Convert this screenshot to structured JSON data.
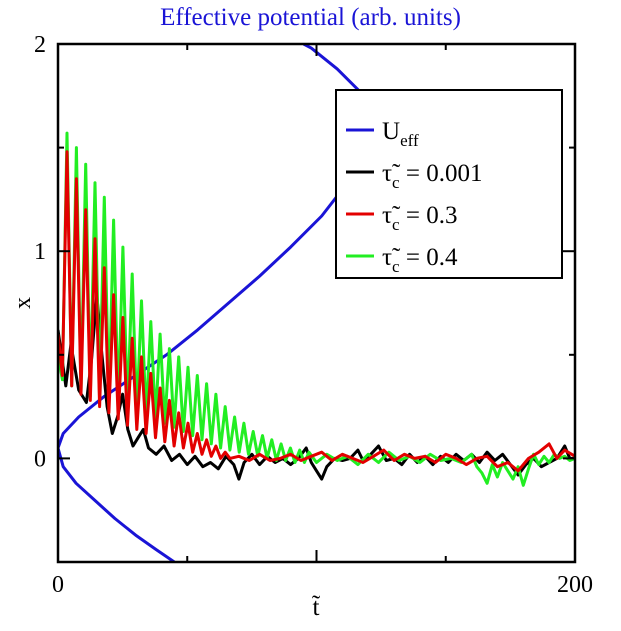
{
  "chart_data": {
    "type": "line",
    "title": "Effective potential (arb. units)",
    "xlabel": "t̃",
    "ylabel": "x",
    "xlim": [
      0,
      200
    ],
    "ylim": [
      -0.5,
      2
    ],
    "x_ticks": [
      {
        "value": 0,
        "label": "0"
      },
      {
        "value": 200,
        "label": "200"
      }
    ],
    "y_ticks": [
      {
        "value": 0,
        "label": "0"
      },
      {
        "value": 1,
        "label": "1"
      },
      {
        "value": 2,
        "label": "2"
      }
    ],
    "grid": false,
    "legend_position": "top-right",
    "colors": {
      "title": "#1a14d6",
      "ueff": "#1a14d6",
      "tau_0001": "#000000",
      "tau_03": "#e30000",
      "tau_04": "#22ee22"
    },
    "series": [
      {
        "name": "U_eff",
        "legend_main": "U",
        "legend_sub": "eff",
        "legend_suffix": "",
        "color": "#1a14d6",
        "points": [
          [
            45,
            -0.5
          ],
          [
            38,
            -0.44
          ],
          [
            30,
            -0.37
          ],
          [
            22,
            -0.29
          ],
          [
            14,
            -0.2
          ],
          [
            7,
            -0.12
          ],
          [
            2,
            -0.04
          ],
          [
            0,
            0.05
          ],
          [
            2,
            0.12
          ],
          [
            8,
            0.2
          ],
          [
            18,
            0.3
          ],
          [
            30,
            0.4
          ],
          [
            42,
            0.5
          ],
          [
            54,
            0.62
          ],
          [
            66,
            0.75
          ],
          [
            78,
            0.88
          ],
          [
            90,
            1.02
          ],
          [
            102,
            1.17
          ],
          [
            112,
            1.33
          ],
          [
            119,
            1.48
          ],
          [
            122,
            1.58
          ],
          [
            121,
            1.68
          ],
          [
            116,
            1.78
          ],
          [
            108,
            1.88
          ],
          [
            98,
            1.98
          ],
          [
            95,
            2.0
          ]
        ]
      },
      {
        "name": "τ̃c = 0.001",
        "legend_main": "τ̃",
        "legend_sub": "c",
        "legend_suffix": " = 0.001",
        "color": "#000000",
        "points": [
          [
            0,
            0.62
          ],
          [
            3,
            0.35
          ],
          [
            5,
            0.55
          ],
          [
            8,
            0.33
          ],
          [
            11,
            0.27
          ],
          [
            13,
            0.48
          ],
          [
            15,
            0.79
          ],
          [
            17,
            0.5
          ],
          [
            19,
            0.25
          ],
          [
            21,
            0.12
          ],
          [
            23,
            0.2
          ],
          [
            25,
            0.31
          ],
          [
            27,
            0.14
          ],
          [
            29,
            0.06
          ],
          [
            31,
            0.1
          ],
          [
            33,
            0.14
          ],
          [
            35,
            0.05
          ],
          [
            38,
            0.02
          ],
          [
            41,
            0.06
          ],
          [
            44,
            -0.01
          ],
          [
            47,
            0.02
          ],
          [
            50,
            -0.03
          ],
          [
            53,
            0.01
          ],
          [
            56,
            -0.04
          ],
          [
            59,
            -0.02
          ],
          [
            62,
            -0.05
          ],
          [
            65,
            0.01
          ],
          [
            68,
            -0.03
          ],
          [
            70,
            -0.1
          ],
          [
            72,
            -0.02
          ],
          [
            75,
            0.02
          ],
          [
            78,
            -0.03
          ],
          [
            81,
            0.01
          ],
          [
            84,
            -0.02
          ],
          [
            87,
            0.0
          ],
          [
            90,
            -0.03
          ],
          [
            93,
            0.0
          ],
          [
            96,
            0.05
          ],
          [
            98,
            -0.02
          ],
          [
            100,
            -0.06
          ],
          [
            102,
            -0.1
          ],
          [
            104,
            -0.04
          ],
          [
            107,
            0.0
          ],
          [
            110,
            -0.01
          ],
          [
            113,
            0.0
          ],
          [
            116,
            0.04
          ],
          [
            118,
            -0.01
          ],
          [
            121,
            0.02
          ],
          [
            124,
            0.06
          ],
          [
            127,
            -0.01
          ],
          [
            130,
            0.0
          ],
          [
            133,
            -0.03
          ],
          [
            136,
            0.02
          ],
          [
            139,
            -0.02
          ],
          [
            142,
            0.01
          ],
          [
            145,
            -0.03
          ],
          [
            148,
            0.01
          ],
          [
            151,
            -0.02
          ],
          [
            154,
            0.02
          ],
          [
            157,
            -0.01
          ],
          [
            160,
            0.02
          ],
          [
            163,
            -0.02
          ],
          [
            166,
            0.03
          ],
          [
            169,
            -0.01
          ],
          [
            172,
            0.02
          ],
          [
            175,
            -0.03
          ],
          [
            178,
            -0.08
          ],
          [
            181,
            -0.03
          ],
          [
            184,
            0.0
          ],
          [
            187,
            -0.04
          ],
          [
            190,
            -0.02
          ],
          [
            193,
            0.0
          ],
          [
            196,
            0.06
          ],
          [
            198,
            0.0
          ],
          [
            200,
            0.0
          ]
        ]
      },
      {
        "name": "τ̃c = 0.3",
        "legend_main": "τ̃",
        "legend_sub": "c",
        "legend_suffix": " = 0.3",
        "color": "#e30000",
        "points": [
          [
            0,
            0.6
          ],
          [
            1.7,
            0.4
          ],
          [
            3.5,
            1.48
          ],
          [
            5.3,
            0.35
          ],
          [
            7.1,
            1.35
          ],
          [
            8.9,
            0.31
          ],
          [
            10.7,
            1.2
          ],
          [
            12.5,
            0.28
          ],
          [
            14.3,
            1.06
          ],
          [
            16.1,
            0.25
          ],
          [
            17.9,
            0.92
          ],
          [
            19.7,
            0.22
          ],
          [
            21.5,
            0.79
          ],
          [
            23.3,
            0.19
          ],
          [
            25.1,
            0.68
          ],
          [
            26.9,
            0.16
          ],
          [
            28.7,
            0.58
          ],
          [
            30.5,
            0.14
          ],
          [
            32.3,
            0.49
          ],
          [
            34.1,
            0.12
          ],
          [
            35.9,
            0.41
          ],
          [
            37.7,
            0.1
          ],
          [
            39.5,
            0.34
          ],
          [
            41.3,
            0.08
          ],
          [
            43.1,
            0.28
          ],
          [
            44.9,
            0.06
          ],
          [
            46.7,
            0.22
          ],
          [
            48.5,
            0.05
          ],
          [
            50.3,
            0.17
          ],
          [
            52.1,
            0.03
          ],
          [
            53.9,
            0.12
          ],
          [
            55.7,
            0.02
          ],
          [
            57.5,
            0.09
          ],
          [
            59.3,
            0.01
          ],
          [
            61.1,
            0.06
          ],
          [
            62.9,
            0.0
          ],
          [
            64.7,
            0.03
          ],
          [
            66.5,
            0.0
          ],
          [
            70,
            0.01
          ],
          [
            74,
            -0.01
          ],
          [
            78,
            0.02
          ],
          [
            82,
            -0.01
          ],
          [
            86,
            0.0
          ],
          [
            90,
            0.02
          ],
          [
            94,
            -0.01
          ],
          [
            98,
            0.01
          ],
          [
            102,
            0.03
          ],
          [
            106,
            -0.01
          ],
          [
            110,
            0.02
          ],
          [
            114,
            0.0
          ],
          [
            118,
            -0.02
          ],
          [
            122,
            0.01
          ],
          [
            126,
            0.04
          ],
          [
            130,
            -0.01
          ],
          [
            134,
            0.02
          ],
          [
            138,
            0.0
          ],
          [
            142,
            0.01
          ],
          [
            146,
            -0.02
          ],
          [
            150,
            0.02
          ],
          [
            154,
            0.0
          ],
          [
            158,
            -0.03
          ],
          [
            162,
            0.0
          ],
          [
            166,
            0.01
          ],
          [
            170,
            -0.04
          ],
          [
            174,
            -0.02
          ],
          [
            178,
            -0.06
          ],
          [
            182,
            0.0
          ],
          [
            186,
            0.03
          ],
          [
            190,
            0.07
          ],
          [
            193,
            0.0
          ],
          [
            196,
            0.04
          ],
          [
            200,
            0.01
          ]
        ]
      },
      {
        "name": "τ̃c = 0.4",
        "legend_main": "τ̃",
        "legend_sub": "c",
        "legend_suffix": " = 0.4",
        "color": "#22ee22",
        "points": [
          [
            0,
            0.5
          ],
          [
            1.7,
            0.38
          ],
          [
            3.5,
            1.57
          ],
          [
            5.3,
            0.35
          ],
          [
            7.1,
            1.5
          ],
          [
            8.9,
            0.32
          ],
          [
            10.7,
            1.42
          ],
          [
            12.5,
            0.3
          ],
          [
            14.3,
            1.33
          ],
          [
            16.1,
            0.28
          ],
          [
            17.9,
            1.26
          ],
          [
            19.7,
            0.27
          ],
          [
            21.5,
            1.15
          ],
          [
            23.3,
            0.25
          ],
          [
            25.1,
            1.02
          ],
          [
            26.9,
            0.24
          ],
          [
            28.7,
            0.89
          ],
          [
            30.5,
            0.22
          ],
          [
            32.3,
            0.76
          ],
          [
            34.1,
            0.2
          ],
          [
            35.9,
            0.66
          ],
          [
            37.7,
            0.19
          ],
          [
            39.5,
            0.6
          ],
          [
            41.3,
            0.17
          ],
          [
            43.1,
            0.53
          ],
          [
            44.9,
            0.15
          ],
          [
            46.7,
            0.49
          ],
          [
            48.5,
            0.13
          ],
          [
            50.3,
            0.44
          ],
          [
            52.1,
            0.11
          ],
          [
            53.9,
            0.4
          ],
          [
            55.7,
            0.09
          ],
          [
            57.5,
            0.36
          ],
          [
            59.3,
            0.07
          ],
          [
            61.1,
            0.31
          ],
          [
            62.9,
            0.05
          ],
          [
            64.7,
            0.25
          ],
          [
            66.5,
            0.04
          ],
          [
            68.3,
            0.2
          ],
          [
            70.1,
            0.03
          ],
          [
            71.9,
            0.17
          ],
          [
            73.7,
            0.02
          ],
          [
            75.5,
            0.13
          ],
          [
            77.3,
            0.01
          ],
          [
            79.1,
            0.11
          ],
          [
            80.9,
            0.0
          ],
          [
            82.7,
            0.09
          ],
          [
            84.5,
            -0.01
          ],
          [
            86.3,
            0.07
          ],
          [
            88.1,
            -0.01
          ],
          [
            89.9,
            0.05
          ],
          [
            91.7,
            -0.02
          ],
          [
            93.5,
            0.04
          ],
          [
            95.3,
            -0.02
          ],
          [
            97.1,
            0.03
          ],
          [
            100,
            -0.02
          ],
          [
            104,
            0.02
          ],
          [
            108,
            -0.01
          ],
          [
            112,
            0.01
          ],
          [
            116,
            -0.03
          ],
          [
            120,
            0.02
          ],
          [
            124,
            -0.02
          ],
          [
            128,
            0.03
          ],
          [
            132,
            -0.01
          ],
          [
            136,
            0.01
          ],
          [
            140,
            -0.02
          ],
          [
            144,
            0.02
          ],
          [
            148,
            -0.01
          ],
          [
            152,
            0.0
          ],
          [
            156,
            -0.02
          ],
          [
            160,
            0.02
          ],
          [
            162,
            -0.04
          ],
          [
            164,
            -0.07
          ],
          [
            166,
            -0.12
          ],
          [
            168,
            -0.03
          ],
          [
            170,
            -0.09
          ],
          [
            172,
            -0.02
          ],
          [
            174,
            -0.06
          ],
          [
            176,
            -0.1
          ],
          [
            178,
            -0.04
          ],
          [
            180,
            -0.13
          ],
          [
            182,
            -0.05
          ],
          [
            184,
            0.02
          ],
          [
            186,
            -0.03
          ],
          [
            188,
            0.01
          ],
          [
            190,
            -0.02
          ],
          [
            192,
            0.02
          ],
          [
            194,
            0.0
          ],
          [
            196,
            0.01
          ],
          [
            198,
            -0.01
          ],
          [
            200,
            0.0
          ]
        ]
      }
    ]
  }
}
